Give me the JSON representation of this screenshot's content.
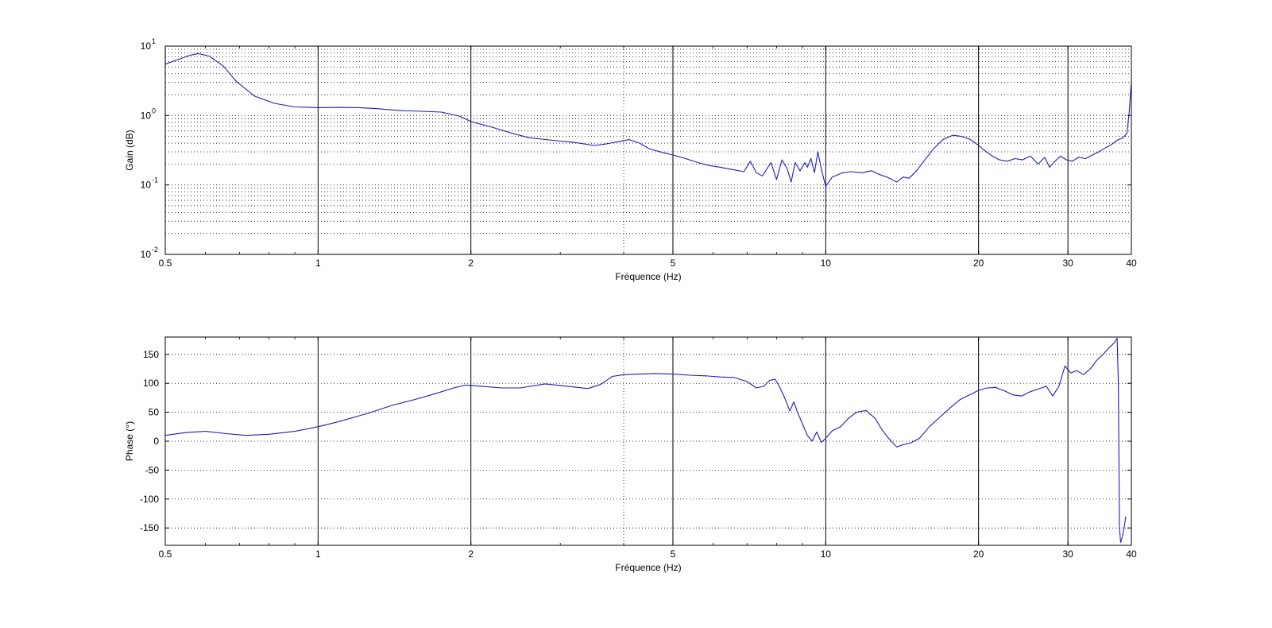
{
  "colors": {
    "background": "#ffffff",
    "series": "#1f1fb4",
    "axes": "#000000",
    "grid": "#000000"
  },
  "chart_data": [
    {
      "type": "line",
      "xscale": "log",
      "yscale": "log",
      "xlim": [
        0.5,
        40
      ],
      "ylim": [
        0.01,
        10
      ],
      "xlabel": "Fréquence (Hz)",
      "ylabel": "Gain (dB)",
      "xticks": [
        0.5,
        1,
        2,
        5,
        10,
        20,
        30,
        40
      ],
      "xtick_labels": [
        "0.5",
        "1",
        "2",
        "5",
        "10",
        "20",
        "30",
        "40"
      ],
      "yticks": [
        0.01,
        0.1,
        1,
        10
      ],
      "ytick_labels": [
        {
          "base": "10",
          "exp": "-2"
        },
        {
          "base": "10",
          "exp": "-1"
        },
        {
          "base": "10",
          "exp": "0"
        },
        {
          "base": "10",
          "exp": "1"
        }
      ],
      "grid": true,
      "series": [
        {
          "x": [
            0.5,
            0.53,
            0.56,
            0.58,
            0.61,
            0.65,
            0.69,
            0.75,
            0.82,
            0.9,
            1.0,
            1.1,
            1.2,
            1.3,
            1.45,
            1.6,
            1.75,
            1.9,
            2.0,
            2.2,
            2.4,
            2.6,
            2.9,
            3.2,
            3.5,
            3.7,
            3.9,
            4.1,
            4.3,
            4.5,
            4.8,
            5.0,
            5.3,
            5.6,
            5.9,
            6.2,
            6.6,
            6.9,
            7.1,
            7.3,
            7.5,
            7.8,
            8.0,
            8.2,
            8.4,
            8.55,
            8.7,
            8.9,
            9.1,
            9.2,
            9.35,
            9.5,
            9.65,
            9.8,
            10.0,
            10.3,
            10.8,
            11.2,
            11.8,
            12.3,
            12.8,
            13.2,
            13.5,
            13.8,
            14.2,
            14.6,
            15.1,
            15.6,
            16.3,
            17.0,
            17.8,
            18.5,
            19.2,
            20.0,
            20.6,
            21.3,
            22.0,
            22.8,
            23.6,
            24.4,
            25.3,
            26.2,
            27.0,
            27.6,
            28.3,
            29.0,
            29.8,
            30.6,
            31.5,
            32.5,
            33.5,
            34.5,
            35.5,
            36.5,
            37.5,
            38.5,
            39.2,
            39.6,
            40.0
          ],
          "y": [
            5.5,
            6.4,
            7.4,
            7.8,
            7.2,
            5.2,
            3.1,
            1.9,
            1.5,
            1.33,
            1.3,
            1.31,
            1.3,
            1.26,
            1.18,
            1.15,
            1.12,
            0.98,
            0.82,
            0.68,
            0.56,
            0.48,
            0.44,
            0.41,
            0.37,
            0.39,
            0.42,
            0.45,
            0.4,
            0.33,
            0.29,
            0.27,
            0.24,
            0.21,
            0.19,
            0.18,
            0.165,
            0.155,
            0.22,
            0.15,
            0.135,
            0.21,
            0.12,
            0.23,
            0.17,
            0.11,
            0.21,
            0.16,
            0.21,
            0.18,
            0.24,
            0.15,
            0.3,
            0.17,
            0.095,
            0.13,
            0.15,
            0.155,
            0.15,
            0.16,
            0.14,
            0.13,
            0.12,
            0.11,
            0.13,
            0.125,
            0.16,
            0.22,
            0.33,
            0.45,
            0.52,
            0.5,
            0.46,
            0.37,
            0.31,
            0.26,
            0.23,
            0.22,
            0.24,
            0.23,
            0.26,
            0.2,
            0.25,
            0.18,
            0.22,
            0.26,
            0.23,
            0.22,
            0.25,
            0.24,
            0.27,
            0.3,
            0.34,
            0.38,
            0.44,
            0.48,
            0.55,
            1.1,
            3.1
          ]
        }
      ]
    },
    {
      "type": "line",
      "xscale": "log",
      "yscale": "linear",
      "xlim": [
        0.5,
        40
      ],
      "ylim": [
        -180,
        180
      ],
      "xlabel": "Fréquence (Hz)",
      "ylabel": "Phase (°)",
      "xticks": [
        0.5,
        1,
        2,
        5,
        10,
        20,
        30,
        40
      ],
      "xtick_labels": [
        "0.5",
        "1",
        "2",
        "5",
        "10",
        "20",
        "30",
        "40"
      ],
      "yticks": [
        -150,
        -100,
        -50,
        0,
        50,
        100,
        150
      ],
      "ytick_labels": [
        "-150",
        "-100",
        "-50",
        "0",
        "50",
        "100",
        "150"
      ],
      "grid": true,
      "series": [
        {
          "x": [
            0.5,
            0.55,
            0.6,
            0.66,
            0.72,
            0.8,
            0.9,
            1.0,
            1.1,
            1.25,
            1.4,
            1.55,
            1.7,
            1.85,
            1.95,
            2.1,
            2.3,
            2.5,
            2.8,
            3.1,
            3.4,
            3.6,
            3.8,
            4.0,
            4.3,
            4.6,
            5.0,
            5.4,
            5.8,
            6.2,
            6.6,
            7.0,
            7.3,
            7.55,
            7.75,
            7.95,
            8.1,
            8.3,
            8.5,
            8.65,
            8.8,
            8.95,
            9.2,
            9.4,
            9.6,
            9.8,
            10.0,
            10.3,
            10.7,
            11.1,
            11.5,
            12.0,
            12.5,
            12.9,
            13.3,
            13.8,
            14.2,
            14.7,
            15.3,
            16.0,
            16.8,
            17.6,
            18.4,
            19.2,
            20.0,
            20.8,
            21.6,
            22.5,
            23.4,
            24.3,
            25.2,
            26.2,
            27.2,
            28.0,
            28.8,
            29.6,
            30.4,
            31.2,
            32.2,
            33.2,
            34.2,
            35.2,
            36.2,
            37.0,
            37.5,
            37.7,
            37.9,
            38.1,
            38.4,
            38.7,
            39.0
          ],
          "y": [
            10,
            15,
            17,
            13,
            10,
            12,
            17,
            25,
            34,
            48,
            62,
            72,
            82,
            92,
            97,
            95,
            92,
            92,
            99,
            95,
            91,
            98,
            112,
            115,
            116,
            117,
            116,
            114,
            113,
            111,
            110,
            103,
            92,
            95,
            105,
            107,
            95,
            75,
            52,
            68,
            50,
            35,
            10,
            0,
            16,
            -2,
            5,
            18,
            25,
            40,
            50,
            53,
            40,
            20,
            5,
            -10,
            -6,
            -3,
            5,
            25,
            42,
            58,
            72,
            80,
            88,
            92,
            93,
            87,
            80,
            78,
            85,
            90,
            95,
            78,
            95,
            130,
            118,
            122,
            115,
            125,
            140,
            150,
            162,
            170,
            178,
            100,
            -150,
            -175,
            -165,
            -150,
            -130
          ]
        }
      ]
    }
  ]
}
